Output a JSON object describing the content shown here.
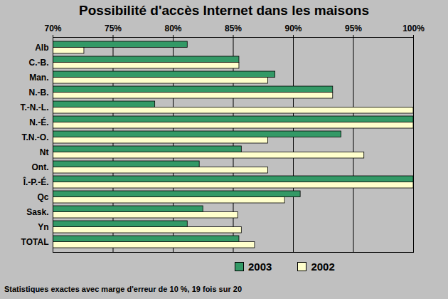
{
  "chart_data": {
    "type": "bar",
    "orientation": "horizontal",
    "title": "Possibilité d'accès Internet dans les maisons",
    "caption": "Statistiques exactes avec marge d'erreur de 10 %, 19 fois sur 20",
    "categories": [
      "Alb",
      "C.-B.",
      "Man.",
      "N.-B.",
      "T.-N.-L.",
      "N.-É.",
      "T.N.-O.",
      "Nt",
      "Ont.",
      "Î.-P.-É.",
      "Qc",
      "Sask.",
      "Yn",
      "TOTAL"
    ],
    "series": [
      {
        "name": "2003",
        "color": "#339966",
        "values": [
          81.2,
          85.5,
          88.5,
          93.3,
          78.5,
          100,
          94.0,
          85.7,
          82.2,
          100,
          90.6,
          82.5,
          81.2,
          85.5
        ]
      },
      {
        "name": "2002",
        "color": "#ffffcc",
        "values": [
          72.6,
          85.5,
          87.9,
          93.3,
          100,
          100,
          87.9,
          95.9,
          87.9,
          100,
          89.3,
          85.4,
          85.7,
          86.8
        ]
      }
    ],
    "xlim": [
      70,
      100
    ],
    "xticks": [
      {
        "value": 70,
        "label": "70%"
      },
      {
        "value": 75,
        "label": "75%"
      },
      {
        "value": 80,
        "label": "80%"
      },
      {
        "value": 85,
        "label": "85%"
      },
      {
        "value": 90,
        "label": "90%"
      },
      {
        "value": 95,
        "label": "95%"
      },
      {
        "value": 100,
        "label": "100%"
      }
    ],
    "grid": true,
    "legend": "bottom"
  }
}
